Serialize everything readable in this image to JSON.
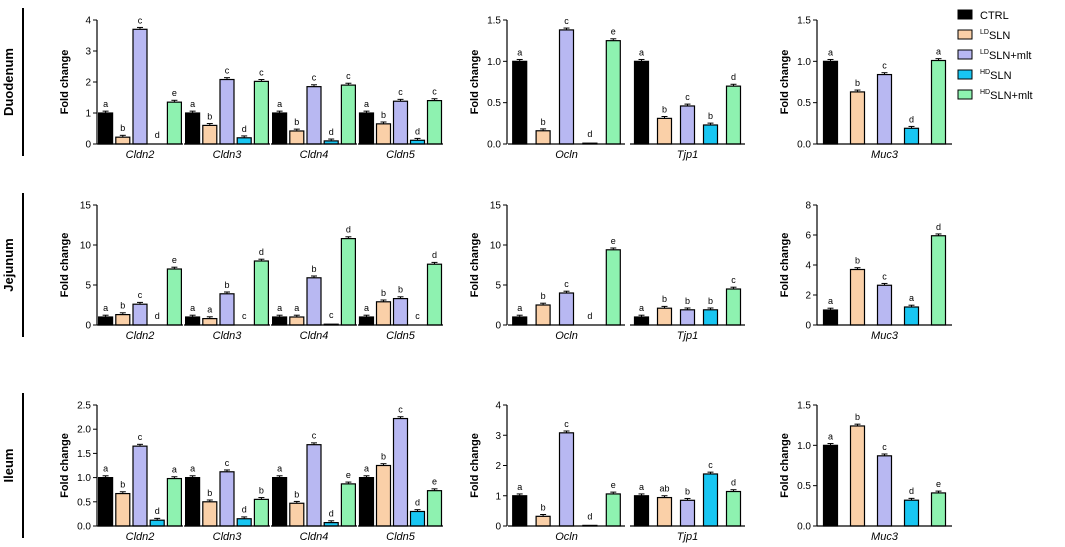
{
  "chart_data": {
    "type": "bar",
    "ylabel": "Fold change",
    "groups": [
      "CTRL",
      "LDSLN",
      "LDSLN+mlt",
      "HDSLN",
      "HDSLN+mlt"
    ],
    "legend": [
      {
        "sup": "",
        "name": "CTRL",
        "color": "#000000"
      },
      {
        "sup": "LD",
        "name": "SLN",
        "color": "#FAD0A8"
      },
      {
        "sup": "LD",
        "name": "SLN+mlt",
        "color": "#B8B8F2"
      },
      {
        "sup": "HD",
        "name": "SLN",
        "color": "#18C6F2"
      },
      {
        "sup": "HD",
        "name": "SLN+mlt",
        "color": "#8EF2B0"
      }
    ],
    "rows": [
      {
        "label": "Duodenum",
        "panels": [
          {
            "ylim": [
              0,
              4
            ],
            "yticks": [
              "0",
              "1",
              "2",
              "3",
              "4"
            ],
            "genes": [
              {
                "name": "Cldn2",
                "values": [
                  1.0,
                  0.22,
                  3.7,
                  0.0,
                  1.35
                ],
                "letters": [
                  "a",
                  "b",
                  "c",
                  "d",
                  "e"
                ]
              },
              {
                "name": "Cldn3",
                "values": [
                  1.0,
                  0.6,
                  2.08,
                  0.2,
                  2.02
                ],
                "letters": [
                  "a",
                  "b",
                  "c",
                  "d",
                  "c"
                ]
              },
              {
                "name": "Cldn4",
                "values": [
                  1.0,
                  0.42,
                  1.85,
                  0.1,
                  1.9
                ],
                "letters": [
                  "a",
                  "b",
                  "c",
                  "d",
                  "c"
                ]
              },
              {
                "name": "Cldn5",
                "values": [
                  1.0,
                  0.65,
                  1.38,
                  0.12,
                  1.4
                ],
                "letters": [
                  "a",
                  "b",
                  "c",
                  "d",
                  "c"
                ]
              }
            ]
          },
          {
            "ylim": [
              0,
              1.5
            ],
            "yticks": [
              "0.0",
              "0.5",
              "1.0",
              "1.5"
            ],
            "genes": [
              {
                "name": "Ocln",
                "values": [
                  1.0,
                  0.16,
                  1.38,
                  0.01,
                  1.25
                ],
                "letters": [
                  "a",
                  "b",
                  "c",
                  "d",
                  "e"
                ]
              },
              {
                "name": "Tjp1",
                "values": [
                  1.0,
                  0.31,
                  0.46,
                  0.23,
                  0.7
                ],
                "letters": [
                  "a",
                  "b",
                  "c",
                  "b",
                  "d"
                ]
              }
            ]
          },
          {
            "ylim": [
              0,
              1.5
            ],
            "yticks": [
              "0.0",
              "0.5",
              "1.0",
              "1.5"
            ],
            "genes": [
              {
                "name": "Muc3",
                "values": [
                  1.0,
                  0.63,
                  0.84,
                  0.19,
                  1.01
                ],
                "letters": [
                  "a",
                  "b",
                  "c",
                  "d",
                  "a"
                ]
              }
            ]
          }
        ]
      },
      {
        "label": "Jejunum",
        "panels": [
          {
            "ylim": [
              0,
              15
            ],
            "yticks": [
              "0",
              "5",
              "10",
              "15"
            ],
            "genes": [
              {
                "name": "Cldn2",
                "values": [
                  1.0,
                  1.3,
                  2.6,
                  0.0,
                  7.0
                ],
                "letters": [
                  "a",
                  "b",
                  "c",
                  "d",
                  "e"
                ]
              },
              {
                "name": "Cldn3",
                "values": [
                  1.0,
                  0.8,
                  3.9,
                  0.0,
                  8.0
                ],
                "letters": [
                  "a",
                  "a",
                  "b",
                  "c",
                  "d"
                ]
              },
              {
                "name": "Cldn4",
                "values": [
                  1.0,
                  1.0,
                  5.9,
                  0.1,
                  10.8
                ],
                "letters": [
                  "a",
                  "a",
                  "b",
                  "c",
                  "d"
                ]
              },
              {
                "name": "Cldn5",
                "values": [
                  1.0,
                  2.9,
                  3.3,
                  0.0,
                  7.6
                ],
                "letters": [
                  "a",
                  "b",
                  "b",
                  "c",
                  "d"
                ]
              }
            ]
          },
          {
            "ylim": [
              0,
              15
            ],
            "yticks": [
              "0",
              "5",
              "10",
              "15"
            ],
            "genes": [
              {
                "name": "Ocln",
                "values": [
                  1.0,
                  2.5,
                  4.0,
                  0.0,
                  9.4
                ],
                "letters": [
                  "a",
                  "b",
                  "c",
                  "d",
                  "e"
                ]
              },
              {
                "name": "Tjp1",
                "values": [
                  1.0,
                  2.1,
                  1.9,
                  1.9,
                  4.5
                ],
                "letters": [
                  "a",
                  "b",
                  "b",
                  "b",
                  "c"
                ]
              }
            ]
          },
          {
            "ylim": [
              0,
              8
            ],
            "yticks": [
              "0",
              "2",
              "4",
              "6",
              "8"
            ],
            "genes": [
              {
                "name": "Muc3",
                "values": [
                  1.0,
                  3.7,
                  2.65,
                  1.2,
                  5.95
                ],
                "letters": [
                  "a",
                  "b",
                  "c",
                  "a",
                  "d"
                ]
              }
            ]
          }
        ]
      },
      {
        "label": "Ileum",
        "panels": [
          {
            "ylim": [
              0,
              2.5
            ],
            "yticks": [
              "0.0",
              "0.5",
              "1.0",
              "1.5",
              "2.0",
              "2.5"
            ],
            "genes": [
              {
                "name": "Cldn2",
                "values": [
                  1.0,
                  0.67,
                  1.65,
                  0.12,
                  0.98
                ],
                "letters": [
                  "a",
                  "b",
                  "c",
                  "d",
                  "a"
                ]
              },
              {
                "name": "Cldn3",
                "values": [
                  1.0,
                  0.5,
                  1.12,
                  0.15,
                  0.55
                ],
                "letters": [
                  "a",
                  "b",
                  "c",
                  "d",
                  "b"
                ]
              },
              {
                "name": "Cldn4",
                "values": [
                  1.0,
                  0.47,
                  1.68,
                  0.07,
                  0.87
                ],
                "letters": [
                  "a",
                  "b",
                  "c",
                  "d",
                  "e"
                ]
              },
              {
                "name": "Cldn5",
                "values": [
                  1.0,
                  1.25,
                  2.22,
                  0.3,
                  0.73
                ],
                "letters": [
                  "a",
                  "b",
                  "c",
                  "d",
                  "e"
                ]
              }
            ]
          },
          {
            "ylim": [
              0,
              4
            ],
            "yticks": [
              "0",
              "1",
              "2",
              "3",
              "4"
            ],
            "genes": [
              {
                "name": "Ocln",
                "values": [
                  1.0,
                  0.32,
                  3.08,
                  0.02,
                  1.06
                ],
                "letters": [
                  "a",
                  "b",
                  "c",
                  "d",
                  "e"
                ]
              },
              {
                "name": "Tjp1",
                "values": [
                  1.0,
                  0.94,
                  0.85,
                  1.72,
                  1.14
                ],
                "letters": [
                  "a",
                  "ab",
                  "b",
                  "c",
                  "d"
                ]
              }
            ]
          },
          {
            "ylim": [
              0,
              1.5
            ],
            "yticks": [
              "0.0",
              "0.5",
              "1.0",
              "1.5"
            ],
            "genes": [
              {
                "name": "Muc3",
                "values": [
                  1.0,
                  1.24,
                  0.87,
                  0.32,
                  0.41
                ],
                "letters": [
                  "a",
                  "b",
                  "c",
                  "d",
                  "e"
                ]
              }
            ]
          }
        ]
      }
    ]
  }
}
